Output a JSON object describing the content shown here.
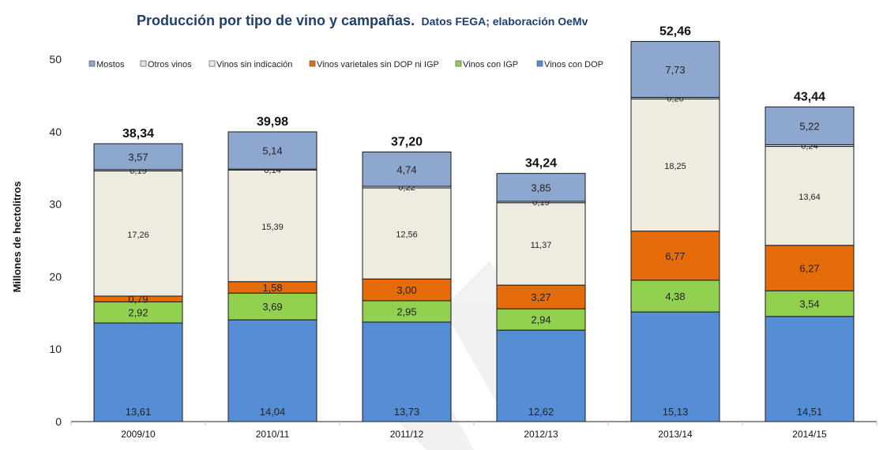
{
  "chart_data": {
    "type": "bar",
    "stacked": true,
    "title": "Producción por tipo de vino y campañas.",
    "subtitle": "Datos FEGA; elaboración OeMv",
    "xlabel": "",
    "ylabel": "Millones de hectolitros",
    "ylim": [
      0,
      55
    ],
    "yticks": [
      "0",
      "10",
      "20",
      "30",
      "40",
      "50"
    ],
    "ytick_values": [
      0,
      10,
      20,
      30,
      40,
      50
    ],
    "grid": false,
    "legend_position": "top",
    "categories": [
      "2009/10",
      "2010/11",
      "2011/12",
      "2012/13",
      "2013/14",
      "2014/15"
    ],
    "series": [
      {
        "name": "Vinos con DOP",
        "color": "#558ed5",
        "values": [
          13.61,
          14.04,
          13.73,
          12.62,
          15.13,
          14.51
        ],
        "labels": [
          "13,61",
          "14,04",
          "13,73",
          "12,62",
          "15,13",
          "14,51"
        ]
      },
      {
        "name": "Vinos con IGP",
        "color": "#92d050",
        "values": [
          2.92,
          3.69,
          2.95,
          2.94,
          4.38,
          3.54
        ],
        "labels": [
          "2,92",
          "3,69",
          "2,95",
          "2,94",
          "4,38",
          "3,54"
        ]
      },
      {
        "name": "Vinos varietales sin DOP ni IGP",
        "color": "#e46c0a",
        "values": [
          0.79,
          1.58,
          3.0,
          3.27,
          6.77,
          6.27
        ],
        "labels": [
          "0,79",
          "1,58",
          "3,00",
          "3,27",
          "6,77",
          "6,27"
        ]
      },
      {
        "name": "Vinos sin indicación",
        "color": "#eeece1",
        "values": [
          17.26,
          15.39,
          12.56,
          11.37,
          18.25,
          13.64
        ],
        "labels": [
          "17,26",
          "15,39",
          "12,56",
          "11,37",
          "18,25",
          "13,64"
        ]
      },
      {
        "name": "Otros vinos",
        "color": "#dde3ee",
        "values": [
          0.19,
          0.14,
          0.22,
          0.19,
          0.2,
          0.24
        ],
        "labels": [
          "0,19",
          "0,14",
          "0,22",
          "0,19",
          "0,20",
          "0,24"
        ]
      },
      {
        "name": "Mostos",
        "color": "#8ea7cf",
        "values": [
          3.57,
          5.14,
          4.74,
          3.85,
          7.73,
          5.22
        ],
        "labels": [
          "3,57",
          "5,14",
          "4,74",
          "3,85",
          "7,73",
          "5,22"
        ]
      }
    ],
    "totals": [
      38.34,
      39.98,
      37.2,
      34.24,
      52.46,
      43.44
    ],
    "total_labels": [
      "38,34",
      "39,98",
      "37,20",
      "34,24",
      "52,46",
      "43,44"
    ],
    "legend_order": [
      "Mostos",
      "Otros vinos",
      "Vinos sin indicación",
      "Vinos varietales sin DOP ni IGP",
      "Vinos con IGP",
      "Vinos con DOP"
    ]
  }
}
